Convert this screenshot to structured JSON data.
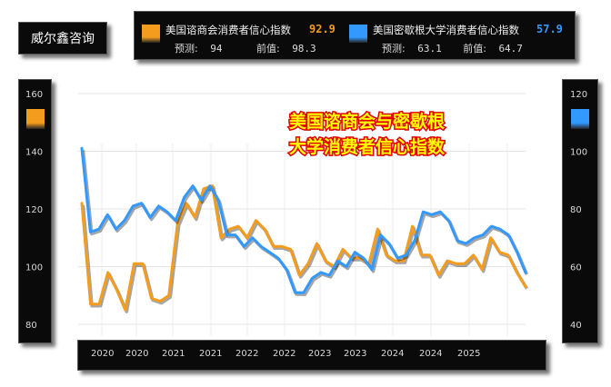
{
  "brand": "威尔鑫咨询",
  "colors": {
    "orange": "#f39c1e",
    "blue": "#3399ff",
    "title_fill": "#ffff00",
    "title_stroke": "#e00000"
  },
  "legend": {
    "series1": {
      "name": "美国谘商会消费者信心指数",
      "value": "92.9",
      "forecast_label": "预测:",
      "forecast": "94",
      "previous_label": "前值:",
      "previous": "98.3",
      "color": "#f39c1e"
    },
    "series2": {
      "name": "美国密歇根大学消费者信心指数",
      "value": "57.9",
      "forecast_label": "预测:",
      "forecast": "63.1",
      "previous_label": "前值:",
      "previous": "64.7",
      "color": "#3399ff"
    }
  },
  "chart_data": {
    "type": "line",
    "title": "美国谘商会与密歇根\n大学消费者信心指数",
    "x_tick_labels": [
      "2020",
      "2020",
      "2021",
      "2021",
      "2022",
      "2022",
      "2023",
      "2023",
      "2024",
      "2024",
      "2025"
    ],
    "y_left": {
      "ticks": [
        "80",
        "100",
        "120",
        "140",
        "160"
      ],
      "ylim": [
        80,
        160
      ]
    },
    "y_right": {
      "ticks": [
        "40",
        "60",
        "80",
        "100",
        "120"
      ],
      "ylim": [
        40,
        120
      ]
    },
    "grid": true,
    "series": [
      {
        "name": "美国谘商会消费者信心指数",
        "axis": "left",
        "color": "#f39c1e",
        "values": [
          122,
          87,
          87,
          98,
          92,
          85,
          101,
          101,
          89,
          88,
          90,
          115,
          122,
          117,
          127,
          128,
          110,
          113,
          114,
          110,
          116,
          113,
          107,
          107,
          106,
          97,
          101,
          108,
          102,
          100,
          106,
          103,
          103,
          101,
          113,
          104,
          102,
          102,
          114,
          104,
          104,
          97,
          102,
          101,
          101,
          104,
          99,
          110,
          105,
          104,
          98,
          93
        ]
      },
      {
        "name": "美国密歇根大学消费者信心指数",
        "axis": "right",
        "color": "#3399ff",
        "values": [
          101,
          72,
          73,
          78,
          73,
          76,
          81,
          82,
          77,
          81,
          79,
          76,
          84,
          88,
          83,
          88,
          83,
          71,
          71,
          67,
          70,
          67,
          65,
          63,
          59,
          51,
          51,
          56,
          58,
          57,
          62,
          60,
          65,
          63,
          59,
          71,
          68,
          63,
          64,
          69,
          79,
          78,
          79,
          76,
          69,
          68,
          70,
          71,
          74,
          73,
          71,
          65,
          57.9
        ]
      }
    ]
  }
}
